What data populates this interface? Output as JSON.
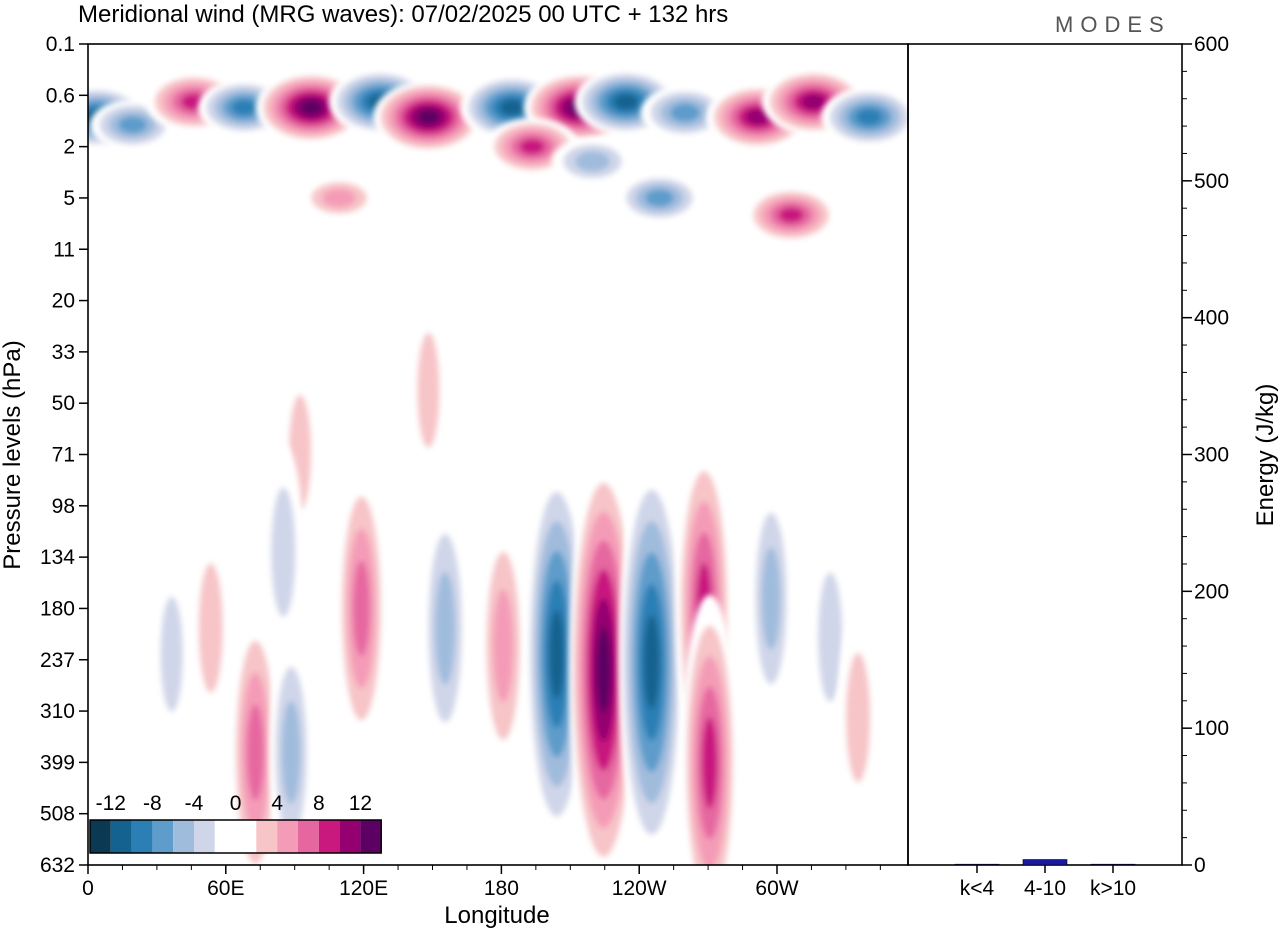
{
  "title": "Meridional wind (MRG waves):  07/02/2025  00 UTC  + 132 hrs",
  "brand": "MODES",
  "chart_data": [
    {
      "type": "heatmap",
      "title": "Meridional wind (MRG waves):  07/02/2025  00 UTC  + 132 hrs",
      "xlabel": "Longitude",
      "ylabel": "Pressure levels (hPa)",
      "x_ticks": [
        "0",
        "60E",
        "120E",
        "180",
        "120W",
        "60W"
      ],
      "y_ticks": [
        "0.1",
        "0.6",
        "2",
        "5",
        "11",
        "20",
        "33",
        "50",
        "71",
        "98",
        "134",
        "180",
        "237",
        "310",
        "399",
        "508",
        "632"
      ],
      "colorbar": {
        "labels": [
          "-12",
          "-8",
          "-4",
          "0",
          "4",
          "8",
          "12"
        ],
        "colors": [
          "#0b3954",
          "#14628f",
          "#2b7fb5",
          "#5d9ccb",
          "#a0bcdd",
          "#d0d6e9",
          "#ffffff",
          "#ffffff",
          "#f7c5c8",
          "#f49cb7",
          "#e667a0",
          "#c9197f",
          "#94006f",
          "#5c0064"
        ]
      },
      "features": [
        {
          "lon": 8,
          "lev": 1.0,
          "value": -11
        },
        {
          "lon": 40,
          "lev": 1.2,
          "value": -7
        },
        {
          "lon": 95,
          "lev": 0.7,
          "value": 10
        },
        {
          "lon": 140,
          "lev": 0.8,
          "value": -9
        },
        {
          "lon": 200,
          "lev": 0.8,
          "value": 14
        },
        {
          "lon": 262,
          "lev": 0.7,
          "value": -12
        },
        {
          "lon": 305,
          "lev": 1.0,
          "value": 14
        },
        {
          "lon": 380,
          "lev": 0.8,
          "value": -12
        },
        {
          "lon": 440,
          "lev": 0.8,
          "value": 14
        },
        {
          "lon": 482,
          "lev": 0.7,
          "value": -12
        },
        {
          "lon": 535,
          "lev": 0.9,
          "value": -8
        },
        {
          "lon": 600,
          "lev": 1.0,
          "value": 12
        },
        {
          "lon": 650,
          "lev": 0.7,
          "value": 12
        },
        {
          "lon": 700,
          "lev": 1.0,
          "value": -10
        },
        {
          "lon": 225,
          "lev": 5.0,
          "value": 5
        },
        {
          "lon": 512,
          "lev": 5.0,
          "value": -7
        },
        {
          "lon": 398,
          "lev": 2.0,
          "value": 9
        },
        {
          "lon": 452,
          "lev": 2.6,
          "value": -6
        },
        {
          "lon": 630,
          "lev": 6.5,
          "value": 9
        },
        {
          "lon": 190,
          "lev": 70,
          "value": 3
        },
        {
          "lon": 305,
          "lev": 45,
          "value": 3
        },
        {
          "lon": 175,
          "lev": 130,
          "value": -4
        },
        {
          "lon": 245,
          "lev": 180,
          "value": 7
        },
        {
          "lon": 320,
          "lev": 200,
          "value": -6
        },
        {
          "lon": 372,
          "lev": 220,
          "value": 6
        },
        {
          "lon": 420,
          "lev": 230,
          "value": -11
        },
        {
          "lon": 462,
          "lev": 250,
          "value": 13
        },
        {
          "lon": 505,
          "lev": 240,
          "value": -12
        },
        {
          "lon": 552,
          "lev": 180,
          "value": 9
        },
        {
          "lon": 557,
          "lev": 400,
          "value": 9
        },
        {
          "lon": 612,
          "lev": 170,
          "value": -5
        },
        {
          "lon": 150,
          "lev": 380,
          "value": 7
        },
        {
          "lon": 182,
          "lev": 380,
          "value": -5
        },
        {
          "lon": 110,
          "lev": 200,
          "value": 4
        },
        {
          "lon": 75,
          "lev": 230,
          "value": -3
        },
        {
          "lon": 665,
          "lev": 210,
          "value": -4
        },
        {
          "lon": 690,
          "lev": 320,
          "value": 4
        }
      ]
    },
    {
      "type": "bar",
      "ylabel": "Energy (J/kg)",
      "categories": [
        "k<4",
        "4-10",
        "k>10"
      ],
      "values": [
        0,
        4,
        0
      ],
      "ylim": [
        0,
        600
      ],
      "y_ticks": [
        "0",
        "100",
        "200",
        "300",
        "400",
        "500",
        "600"
      ],
      "bar_color": "#1a1aa0"
    }
  ]
}
